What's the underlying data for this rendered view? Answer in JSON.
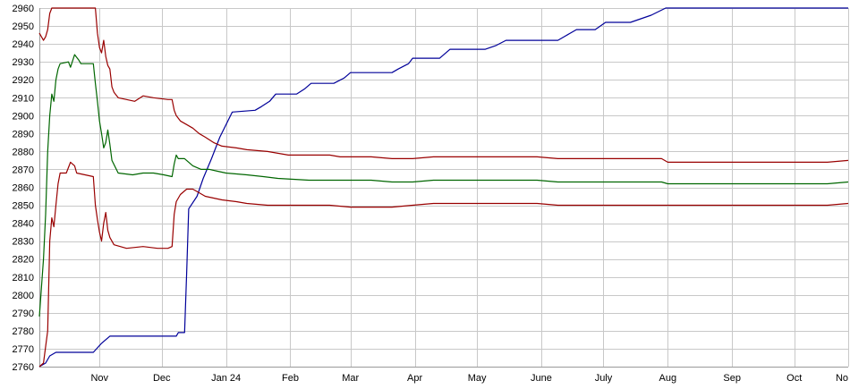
{
  "chart_data": {
    "type": "line",
    "ylim": [
      2760,
      2960
    ],
    "yticks": [
      2760,
      2770,
      2780,
      2790,
      2800,
      2810,
      2820,
      2830,
      2840,
      2850,
      2860,
      2870,
      2880,
      2890,
      2900,
      2910,
      2920,
      2930,
      2940,
      2950,
      2960
    ],
    "xlim": [
      0,
      390
    ],
    "xticks": [
      {
        "label": "Nov",
        "x": 29
      },
      {
        "label": "Dec",
        "x": 59
      },
      {
        "label": "Jan 24",
        "x": 90
      },
      {
        "label": "Feb",
        "x": 121
      },
      {
        "label": "Mar",
        "x": 150
      },
      {
        "label": "Apr",
        "x": 181
      },
      {
        "label": "May",
        "x": 211
      },
      {
        "label": "June",
        "x": 242
      },
      {
        "label": "July",
        "x": 272
      },
      {
        "label": "Aug",
        "x": 303
      },
      {
        "label": "Sep",
        "x": 334
      },
      {
        "label": "Oct",
        "x": 364
      },
      {
        "label": "No",
        "x": 390
      }
    ],
    "grid": true,
    "series": [
      {
        "color": "#000099",
        "points": [
          [
            0,
            2760
          ],
          [
            3,
            2762
          ],
          [
            5,
            2766
          ],
          [
            8,
            2768
          ],
          [
            26,
            2768
          ],
          [
            30,
            2773
          ],
          [
            34,
            2777
          ],
          [
            66,
            2777
          ],
          [
            67,
            2779
          ],
          [
            70,
            2779
          ],
          [
            71,
            2812
          ],
          [
            72,
            2848
          ],
          [
            76,
            2855
          ],
          [
            79,
            2865
          ],
          [
            83,
            2876
          ],
          [
            87,
            2888
          ],
          [
            93,
            2902
          ],
          [
            104,
            2903
          ],
          [
            107,
            2905
          ],
          [
            111,
            2908
          ],
          [
            114,
            2912
          ],
          [
            124,
            2912
          ],
          [
            128,
            2915
          ],
          [
            131,
            2918
          ],
          [
            142,
            2918
          ],
          [
            147,
            2921
          ],
          [
            150,
            2924
          ],
          [
            170,
            2924
          ],
          [
            173,
            2926
          ],
          [
            178,
            2929
          ],
          [
            180,
            2932
          ],
          [
            193,
            2932
          ],
          [
            198,
            2937
          ],
          [
            215,
            2937
          ],
          [
            220,
            2939
          ],
          [
            225,
            2942
          ],
          [
            250,
            2942
          ],
          [
            253,
            2944
          ],
          [
            259,
            2948
          ],
          [
            268,
            2948
          ],
          [
            273,
            2952
          ],
          [
            285,
            2952
          ],
          [
            295,
            2956
          ],
          [
            302,
            2960
          ],
          [
            390,
            2960
          ]
        ]
      },
      {
        "color": "#990000",
        "points": [
          [
            0,
            2946
          ],
          [
            1,
            2944
          ],
          [
            2,
            2942
          ],
          [
            3,
            2944
          ],
          [
            4,
            2948
          ],
          [
            5,
            2957
          ],
          [
            6,
            2960
          ],
          [
            27,
            2960
          ],
          [
            28,
            2946
          ],
          [
            29,
            2938
          ],
          [
            30,
            2935
          ],
          [
            31,
            2942
          ],
          [
            32,
            2933
          ],
          [
            33,
            2928
          ],
          [
            34,
            2926
          ],
          [
            35,
            2916
          ],
          [
            36,
            2913
          ],
          [
            38,
            2910
          ],
          [
            42,
            2909
          ],
          [
            46,
            2908
          ],
          [
            50,
            2911
          ],
          [
            55,
            2910
          ],
          [
            62,
            2909
          ],
          [
            64,
            2909
          ],
          [
            65,
            2903
          ],
          [
            66,
            2900
          ],
          [
            68,
            2897
          ],
          [
            71,
            2895
          ],
          [
            74,
            2893
          ],
          [
            77,
            2890
          ],
          [
            80,
            2888
          ],
          [
            84,
            2885
          ],
          [
            88,
            2883
          ],
          [
            95,
            2882
          ],
          [
            100,
            2881
          ],
          [
            110,
            2880
          ],
          [
            115,
            2879
          ],
          [
            120,
            2878
          ],
          [
            125,
            2878
          ],
          [
            140,
            2878
          ],
          [
            145,
            2877
          ],
          [
            150,
            2877
          ],
          [
            155,
            2877
          ],
          [
            160,
            2877
          ],
          [
            170,
            2876
          ],
          [
            180,
            2876
          ],
          [
            190,
            2877
          ],
          [
            200,
            2877
          ],
          [
            210,
            2877
          ],
          [
            220,
            2877
          ],
          [
            230,
            2877
          ],
          [
            240,
            2877
          ],
          [
            250,
            2876
          ],
          [
            260,
            2876
          ],
          [
            270,
            2876
          ],
          [
            280,
            2876
          ],
          [
            290,
            2876
          ],
          [
            300,
            2876
          ],
          [
            303,
            2874
          ],
          [
            310,
            2874
          ],
          [
            320,
            2874
          ],
          [
            330,
            2874
          ],
          [
            340,
            2874
          ],
          [
            350,
            2874
          ],
          [
            360,
            2874
          ],
          [
            370,
            2874
          ],
          [
            380,
            2874
          ],
          [
            390,
            2875
          ]
        ]
      },
      {
        "color": "#006600",
        "points": [
          [
            0,
            2788
          ],
          [
            2,
            2820
          ],
          [
            3,
            2845
          ],
          [
            4,
            2880
          ],
          [
            5,
            2900
          ],
          [
            6,
            2912
          ],
          [
            7,
            2908
          ],
          [
            8,
            2920
          ],
          [
            9,
            2926
          ],
          [
            10,
            2929
          ],
          [
            14,
            2930
          ],
          [
            15,
            2927
          ],
          [
            17,
            2934
          ],
          [
            19,
            2931
          ],
          [
            20,
            2929
          ],
          [
            26,
            2929
          ],
          [
            27,
            2918
          ],
          [
            28,
            2908
          ],
          [
            29,
            2897
          ],
          [
            30,
            2890
          ],
          [
            31,
            2882
          ],
          [
            32,
            2885
          ],
          [
            33,
            2892
          ],
          [
            34,
            2884
          ],
          [
            35,
            2875
          ],
          [
            38,
            2868
          ],
          [
            45,
            2867
          ],
          [
            50,
            2868
          ],
          [
            55,
            2868
          ],
          [
            60,
            2867
          ],
          [
            64,
            2866
          ],
          [
            65,
            2873
          ],
          [
            66,
            2878
          ],
          [
            67,
            2876
          ],
          [
            70,
            2876
          ],
          [
            74,
            2872
          ],
          [
            78,
            2870
          ],
          [
            82,
            2870
          ],
          [
            86,
            2869
          ],
          [
            90,
            2868
          ],
          [
            100,
            2867
          ],
          [
            108,
            2866
          ],
          [
            115,
            2865
          ],
          [
            130,
            2864
          ],
          [
            140,
            2864
          ],
          [
            150,
            2864
          ],
          [
            160,
            2864
          ],
          [
            170,
            2863
          ],
          [
            180,
            2863
          ],
          [
            190,
            2864
          ],
          [
            200,
            2864
          ],
          [
            210,
            2864
          ],
          [
            220,
            2864
          ],
          [
            230,
            2864
          ],
          [
            240,
            2864
          ],
          [
            250,
            2863
          ],
          [
            260,
            2863
          ],
          [
            270,
            2863
          ],
          [
            280,
            2863
          ],
          [
            290,
            2863
          ],
          [
            300,
            2863
          ],
          [
            303,
            2862
          ],
          [
            320,
            2862
          ],
          [
            330,
            2862
          ],
          [
            340,
            2862
          ],
          [
            350,
            2862
          ],
          [
            360,
            2862
          ],
          [
            370,
            2862
          ],
          [
            380,
            2862
          ],
          [
            390,
            2863
          ]
        ]
      },
      {
        "color": "#990000",
        "points": [
          [
            0,
            2760
          ],
          [
            2,
            2762
          ],
          [
            4,
            2780
          ],
          [
            5,
            2830
          ],
          [
            6,
            2843
          ],
          [
            7,
            2838
          ],
          [
            8,
            2850
          ],
          [
            9,
            2862
          ],
          [
            10,
            2868
          ],
          [
            13,
            2868
          ],
          [
            15,
            2874
          ],
          [
            17,
            2872
          ],
          [
            18,
            2868
          ],
          [
            26,
            2866
          ],
          [
            27,
            2850
          ],
          [
            28,
            2842
          ],
          [
            29,
            2835
          ],
          [
            30,
            2830
          ],
          [
            31,
            2840
          ],
          [
            32,
            2846
          ],
          [
            33,
            2836
          ],
          [
            34,
            2832
          ],
          [
            36,
            2828
          ],
          [
            42,
            2826
          ],
          [
            50,
            2827
          ],
          [
            57,
            2826
          ],
          [
            62,
            2826
          ],
          [
            64,
            2827
          ],
          [
            65,
            2845
          ],
          [
            66,
            2852
          ],
          [
            68,
            2856
          ],
          [
            71,
            2859
          ],
          [
            74,
            2859
          ],
          [
            77,
            2857
          ],
          [
            80,
            2855
          ],
          [
            84,
            2854
          ],
          [
            88,
            2853
          ],
          [
            95,
            2852
          ],
          [
            100,
            2851
          ],
          [
            110,
            2850
          ],
          [
            120,
            2850
          ],
          [
            130,
            2850
          ],
          [
            140,
            2850
          ],
          [
            150,
            2849
          ],
          [
            160,
            2849
          ],
          [
            170,
            2849
          ],
          [
            180,
            2850
          ],
          [
            190,
            2851
          ],
          [
            200,
            2851
          ],
          [
            210,
            2851
          ],
          [
            220,
            2851
          ],
          [
            230,
            2851
          ],
          [
            240,
            2851
          ],
          [
            250,
            2850
          ],
          [
            260,
            2850
          ],
          [
            270,
            2850
          ],
          [
            280,
            2850
          ],
          [
            290,
            2850
          ],
          [
            300,
            2850
          ],
          [
            310,
            2850
          ],
          [
            320,
            2850
          ],
          [
            330,
            2850
          ],
          [
            340,
            2850
          ],
          [
            350,
            2850
          ],
          [
            360,
            2850
          ],
          [
            370,
            2850
          ],
          [
            380,
            2850
          ],
          [
            390,
            2851
          ]
        ]
      }
    ]
  }
}
